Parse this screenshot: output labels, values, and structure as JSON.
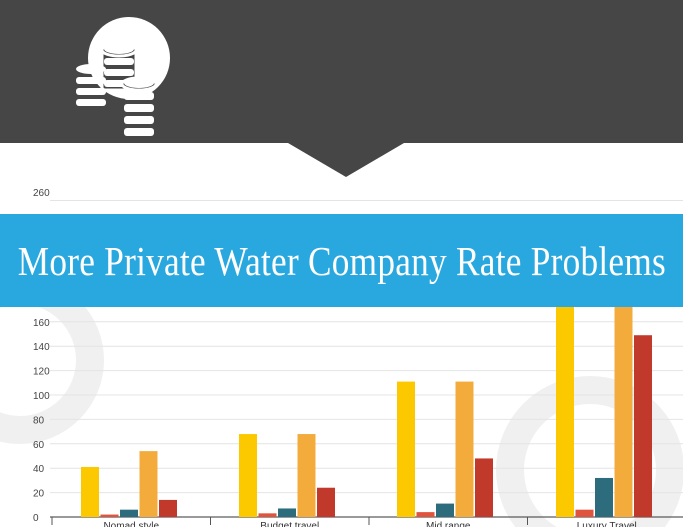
{
  "header": {
    "background": "#464646",
    "icon": "coins-stack-icon"
  },
  "banner": {
    "title": "More Private Water Company Rate Problems",
    "background": "#29a8e0"
  },
  "chart_data": {
    "type": "bar",
    "categories": [
      "Nomad style",
      "Budget travel",
      "Mid range",
      "Luxury Travel"
    ],
    "series": [
      {
        "color": "#fcc800",
        "values": [
          41,
          68,
          111,
          190
        ]
      },
      {
        "color": "#e0533c",
        "values": [
          2,
          3,
          4,
          6
        ]
      },
      {
        "color": "#2c6c7c",
        "values": [
          6,
          7,
          11,
          32
        ]
      },
      {
        "color": "#f3ac3c",
        "values": [
          54,
          68,
          111,
          190
        ]
      },
      {
        "color": "#c0392b",
        "values": [
          14,
          24,
          48,
          149
        ]
      }
    ],
    "yticks": [
      0,
      20,
      40,
      60,
      80,
      100,
      120,
      140,
      160
    ],
    "ytick_top": "260",
    "ylim": [
      0,
      260
    ],
    "grid": true
  }
}
